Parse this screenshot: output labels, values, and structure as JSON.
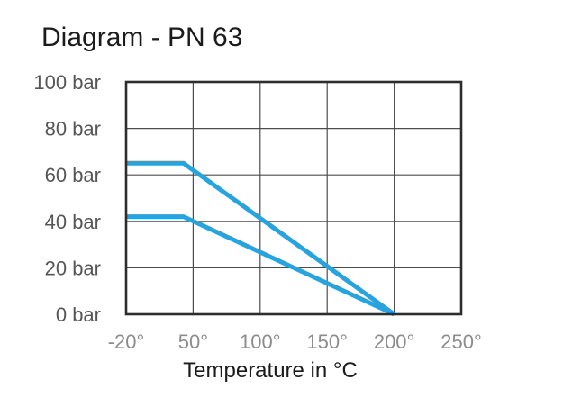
{
  "title": "Diagram - PN 63",
  "colors": {
    "line": "#29A3DC",
    "grid": "#4d4d4d",
    "border": "#2d2d2d",
    "title_text": "#1b1b1b",
    "y_tick_text": "#565656",
    "x_tick_text": "#8c8c8c",
    "background": "#ffffff"
  },
  "chart_data": {
    "type": "line",
    "title": "Diagram - PN 63",
    "xlabel": "Temperature in °C",
    "ylabel": "",
    "grid": true,
    "legend": "none",
    "ylim": [
      0,
      100
    ],
    "x_ticks": [
      {
        "value": -20,
        "label": "-20°"
      },
      {
        "value": 50,
        "label": "50°"
      },
      {
        "value": 100,
        "label": "100°"
      },
      {
        "value": 150,
        "label": "150°"
      },
      {
        "value": 200,
        "label": "200°"
      },
      {
        "value": 250,
        "label": "250°"
      }
    ],
    "y_ticks": [
      {
        "value": 0,
        "label": "0 bar"
      },
      {
        "value": 20,
        "label": "20 bar"
      },
      {
        "value": 40,
        "label": "40 bar"
      },
      {
        "value": 60,
        "label": "60 bar"
      },
      {
        "value": 80,
        "label": "80 bar"
      },
      {
        "value": 100,
        "label": "100 bar"
      }
    ],
    "series": [
      {
        "name": "upper pressure-temperature curve",
        "color": "#29A3DC",
        "points": [
          {
            "x": -20,
            "y": 65
          },
          {
            "x": 40,
            "y": 65
          },
          {
            "x": 200,
            "y": 0
          }
        ]
      },
      {
        "name": "lower pressure-temperature curve",
        "color": "#29A3DC",
        "points": [
          {
            "x": -20,
            "y": 42
          },
          {
            "x": 40,
            "y": 42
          },
          {
            "x": 200,
            "y": 0
          }
        ]
      }
    ]
  }
}
